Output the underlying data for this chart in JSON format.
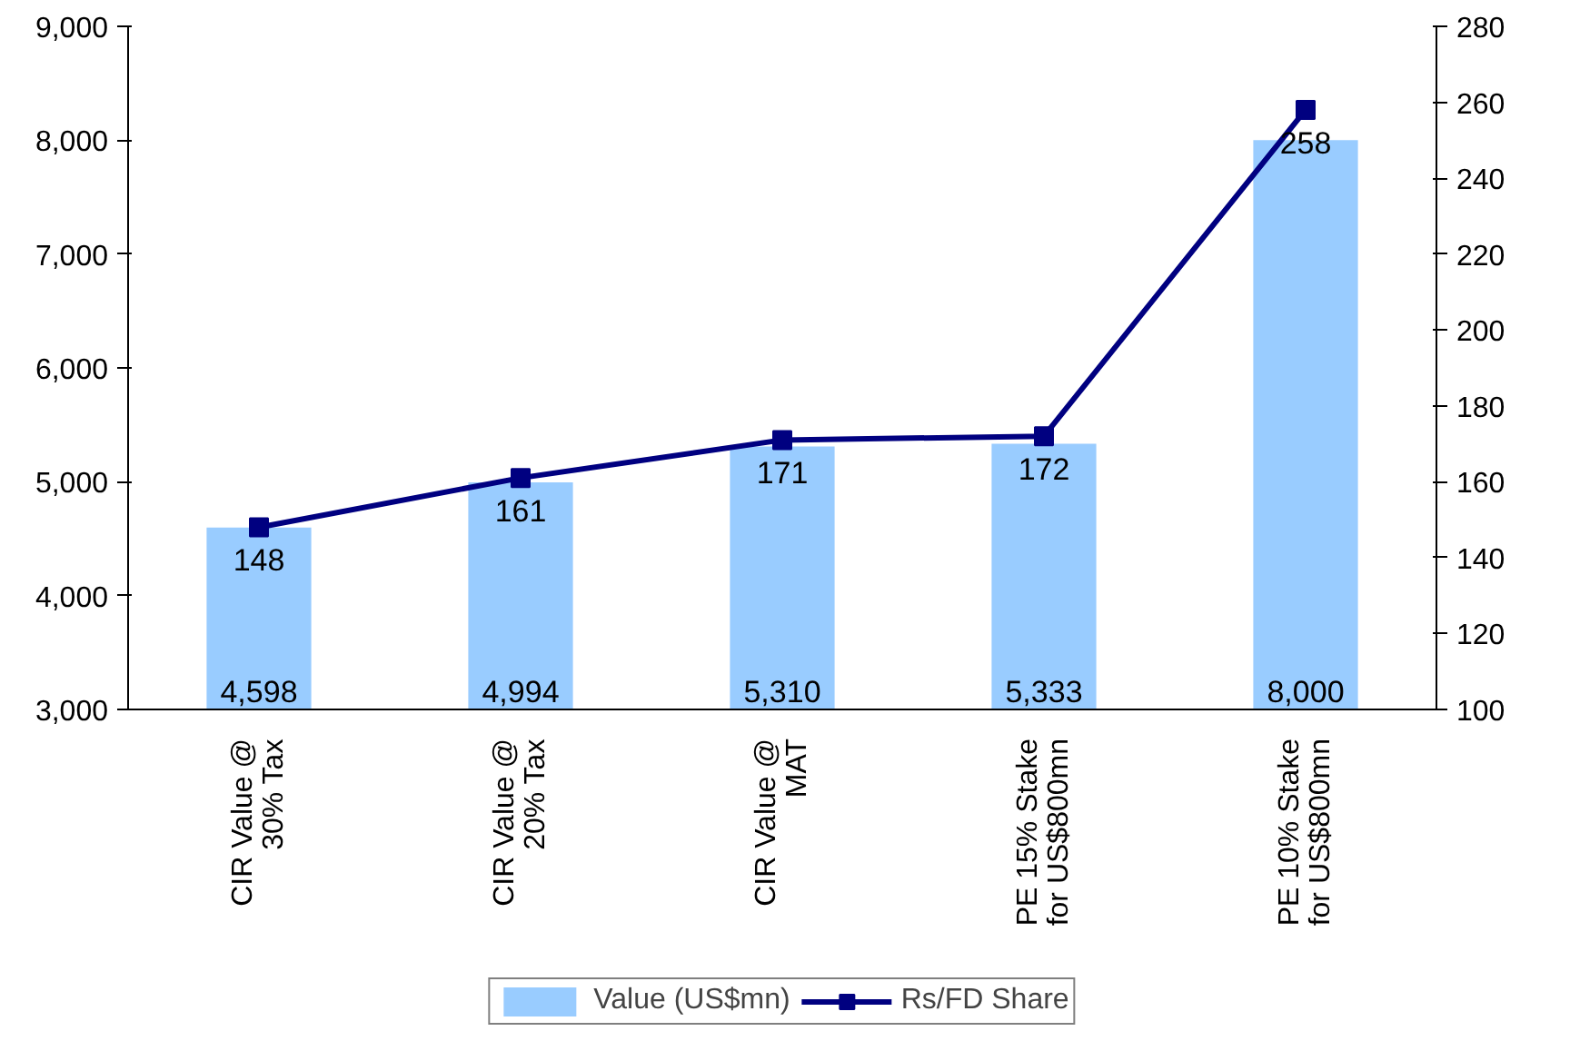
{
  "chart_data": {
    "type": "bar",
    "categories": [
      "CIR Value @\n30% Tax",
      "CIR Value @\n20% Tax",
      "CIR Value @\nMAT",
      "PE 15% Stake\nfor US$800mn",
      "PE 10% Stake\nfor US$800mn"
    ],
    "series": [
      {
        "name": "Value (US$mn)",
        "color": "#99ccff",
        "values": [
          4598,
          4994,
          5310,
          5333,
          8000
        ],
        "value_labels": [
          "4,598",
          "4,994",
          "5,310",
          "5,333",
          "8,000"
        ]
      },
      {
        "name": "Rs/FD Share",
        "type": "line",
        "axis": "y2",
        "color": "#000080",
        "values": [
          148,
          161,
          171,
          172,
          258
        ],
        "value_labels": [
          "148",
          "161",
          "171",
          "172",
          "258"
        ]
      }
    ],
    "ylim": [
      3000,
      9000
    ],
    "yticks": [
      {
        "value": 3000,
        "label": "3,000"
      },
      {
        "value": 4000,
        "label": "4,000"
      },
      {
        "value": 5000,
        "label": "5,000"
      },
      {
        "value": 6000,
        "label": "6,000"
      },
      {
        "value": 7000,
        "label": "7,000"
      },
      {
        "value": 8000,
        "label": "8,000"
      },
      {
        "value": 9000,
        "label": "9,000"
      }
    ],
    "y2lim": [
      100,
      280
    ],
    "y2ticks": [
      100,
      120,
      140,
      160,
      180,
      200,
      220,
      240,
      260,
      280
    ],
    "marker": "square",
    "line_style": "solid",
    "grid": false,
    "legend": "bottom"
  }
}
